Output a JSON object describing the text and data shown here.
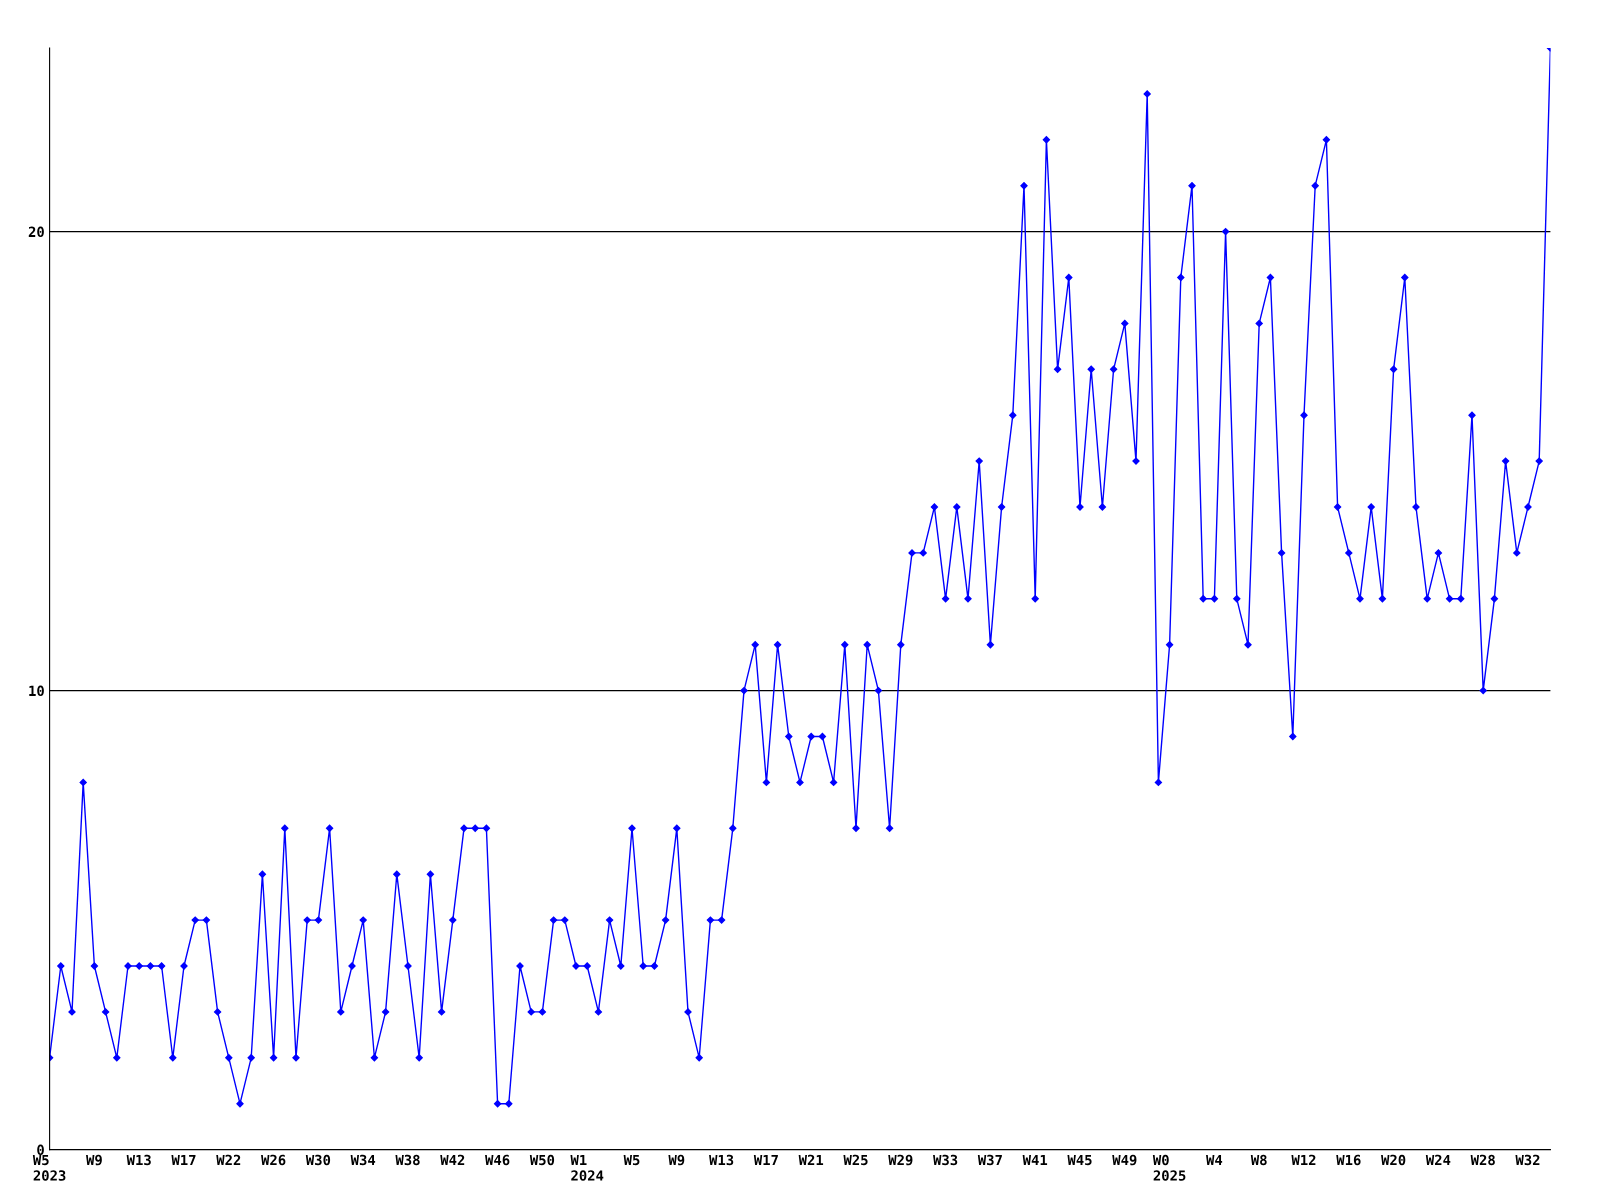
{
  "chart_data": {
    "type": "line",
    "categories": [
      "W5\n2023",
      null,
      null,
      null,
      "W9",
      null,
      null,
      null,
      "W13",
      null,
      null,
      null,
      "W17",
      null,
      null,
      null,
      "W22",
      null,
      null,
      null,
      "W26",
      null,
      null,
      null,
      "W30",
      null,
      null,
      null,
      "W34",
      null,
      null,
      null,
      "W38",
      null,
      null,
      null,
      "W42",
      null,
      null,
      null,
      "W46",
      null,
      null,
      null,
      "W50",
      null,
      null,
      null,
      "W1\n2024",
      null,
      null,
      null,
      "W5",
      null,
      null,
      null,
      "W9",
      null,
      null,
      null,
      "W13",
      null,
      null,
      null,
      "W17",
      null,
      null,
      null,
      "W21",
      null,
      null,
      null,
      "W25",
      null,
      null,
      null,
      "W29",
      null,
      null,
      null,
      "W33",
      null,
      null,
      null,
      "W37",
      null,
      null,
      null,
      "W41",
      null,
      null,
      null,
      "W45",
      null,
      null,
      null,
      "W49",
      null,
      null,
      null,
      "W0\n2025",
      null,
      null,
      null,
      "W4",
      null,
      null,
      null,
      "W8",
      null,
      null,
      null,
      "W12",
      null,
      null,
      null,
      "W16",
      null,
      null,
      null,
      "W20",
      null,
      null,
      null,
      "W24",
      null,
      null,
      null,
      "W28",
      null,
      null,
      null,
      "W32",
      null,
      null
    ],
    "series": [
      {
        "color": "#0000ff",
        "values": [
          2,
          4,
          3,
          8,
          4,
          3,
          2,
          4,
          4,
          4,
          4,
          2,
          4,
          5,
          5,
          3,
          2,
          1,
          2,
          6,
          2,
          7,
          2,
          5,
          5,
          7,
          3,
          4,
          5,
          2,
          3,
          6,
          4,
          2,
          6,
          3,
          5,
          7,
          7,
          7,
          1,
          1,
          4,
          3,
          3,
          5,
          5,
          4,
          4,
          3,
          5,
          4,
          7,
          4,
          4,
          5,
          7,
          3,
          2,
          5,
          5,
          7,
          10,
          11,
          8,
          11,
          9,
          8,
          9,
          9,
          8,
          11,
          7,
          11,
          10,
          7,
          11,
          13,
          13,
          14,
          12,
          14,
          12,
          15,
          11,
          14,
          16,
          21,
          12,
          22,
          17,
          19,
          14,
          17,
          14,
          17,
          18,
          15,
          23,
          8,
          11,
          19,
          21,
          12,
          12,
          20,
          12,
          11,
          18,
          19,
          13,
          9,
          16,
          21,
          22,
          14,
          13,
          12,
          14,
          12,
          17,
          19,
          14,
          12,
          13,
          12,
          12,
          16,
          10,
          12,
          15,
          13,
          14,
          15,
          24
        ]
      }
    ],
    "ylim": [
      0,
      24
    ],
    "yticks": [
      0,
      10,
      20
    ],
    "grid": "y",
    "marker": "diamond",
    "line_style": "solid",
    "legend": false
  }
}
